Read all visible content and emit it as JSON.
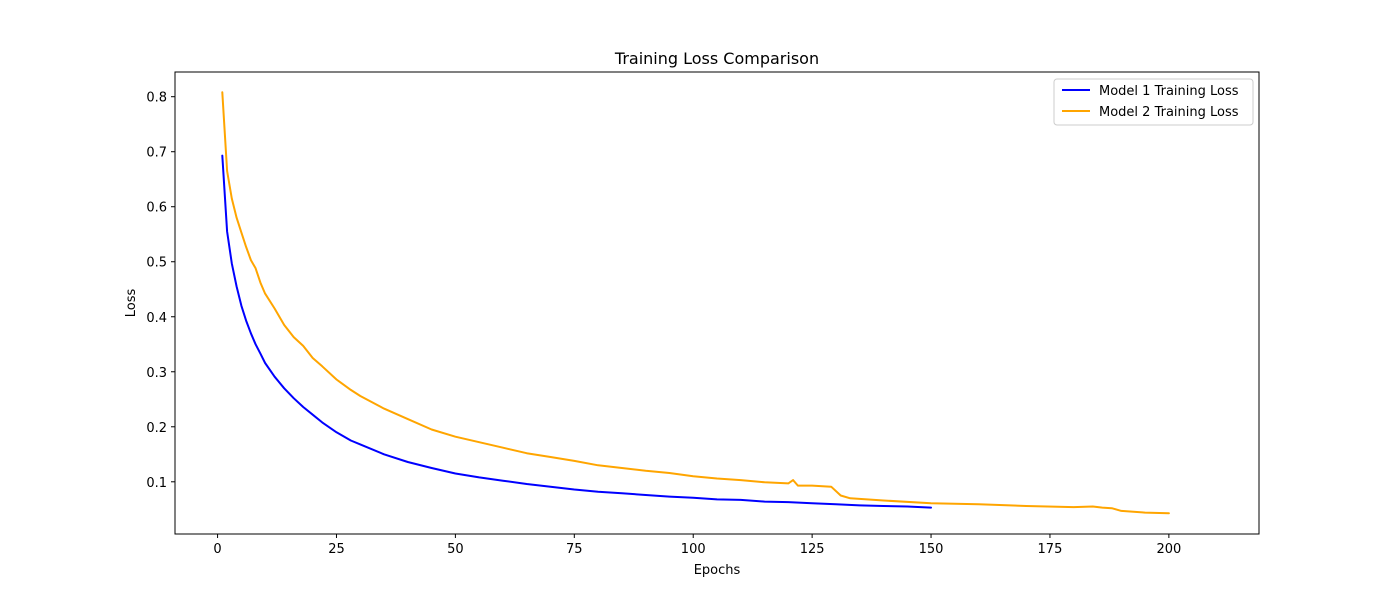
{
  "chart_data": {
    "type": "line",
    "title": "Training Loss Comparison",
    "xlabel": "Epochs",
    "ylabel": "Loss",
    "xlim": [
      -8.95,
      218.95
    ],
    "ylim": [
      0.0051,
      0.8449
    ],
    "xticks": [
      0,
      25,
      50,
      75,
      100,
      125,
      150,
      175,
      200
    ],
    "yticks": [
      0.1,
      0.2,
      0.3,
      0.4,
      0.5,
      0.6,
      0.7,
      0.8
    ],
    "xtick_labels": [
      "0",
      "25",
      "50",
      "75",
      "100",
      "125",
      "150",
      "175",
      "200"
    ],
    "ytick_labels": [
      "0.1",
      "0.2",
      "0.3",
      "0.4",
      "0.5",
      "0.6",
      "0.7",
      "0.8"
    ],
    "grid": false,
    "legend_position": "top-right",
    "series": [
      {
        "name": "Model 1 Training Loss",
        "color": "#0000ff",
        "x": [
          1,
          2,
          3,
          4,
          5,
          6,
          7,
          8,
          9,
          10,
          12,
          14,
          16,
          18,
          20,
          22,
          25,
          28,
          30,
          35,
          40,
          45,
          50,
          55,
          60,
          65,
          70,
          75,
          80,
          85,
          90,
          95,
          100,
          105,
          110,
          115,
          120,
          125,
          130,
          135,
          140,
          145,
          150
        ],
        "values": [
          0.693,
          0.555,
          0.497,
          0.455,
          0.42,
          0.393,
          0.37,
          0.35,
          0.333,
          0.316,
          0.291,
          0.27,
          0.252,
          0.236,
          0.222,
          0.208,
          0.19,
          0.175,
          0.168,
          0.15,
          0.136,
          0.125,
          0.115,
          0.108,
          0.102,
          0.096,
          0.091,
          0.086,
          0.082,
          0.079,
          0.076,
          0.073,
          0.071,
          0.068,
          0.067,
          0.064,
          0.063,
          0.061,
          0.059,
          0.057,
          0.056,
          0.055,
          0.053
        ]
      },
      {
        "name": "Model 2 Training Loss",
        "color": "#ffa500",
        "x": [
          1,
          2,
          3,
          4,
          5,
          6,
          7,
          8,
          9,
          10,
          12,
          14,
          16,
          18,
          20,
          22,
          25,
          28,
          30,
          35,
          40,
          45,
          50,
          55,
          60,
          65,
          70,
          75,
          80,
          85,
          90,
          95,
          100,
          105,
          110,
          115,
          120,
          121,
          122,
          125,
          129,
          131,
          133,
          140,
          150,
          160,
          170,
          180,
          184,
          186,
          188,
          190,
          195,
          200
        ],
        "values": [
          0.808,
          0.665,
          0.615,
          0.58,
          0.553,
          0.527,
          0.503,
          0.488,
          0.462,
          0.442,
          0.415,
          0.385,
          0.363,
          0.347,
          0.325,
          0.31,
          0.286,
          0.267,
          0.256,
          0.233,
          0.214,
          0.195,
          0.182,
          0.172,
          0.162,
          0.152,
          0.145,
          0.138,
          0.13,
          0.125,
          0.12,
          0.116,
          0.11,
          0.106,
          0.103,
          0.099,
          0.097,
          0.103,
          0.093,
          0.093,
          0.091,
          0.075,
          0.07,
          0.066,
          0.061,
          0.059,
          0.056,
          0.054,
          0.055,
          0.053,
          0.052,
          0.047,
          0.044,
          0.043
        ]
      }
    ]
  }
}
